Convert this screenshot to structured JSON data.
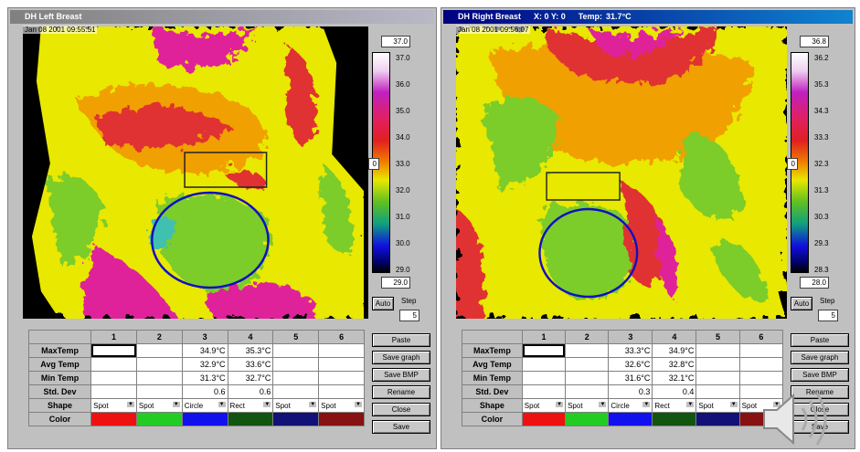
{
  "windows": [
    {
      "title": "DH Left Breast",
      "date": "Jan 08 2001 09:55:51",
      "scale": {
        "top": "37.0",
        "labels": [
          "37.0",
          "36.0",
          "35.0",
          "34.0",
          "33.0",
          "32.0",
          "31.0",
          "30.0",
          "29.0"
        ],
        "bottom": "29.0",
        "marker": "0"
      },
      "auto": "Auto",
      "step": "Step",
      "step_value": "5",
      "table": {
        "columns": [
          "1",
          "2",
          "3",
          "4",
          "5",
          "6"
        ],
        "rows": [
          {
            "label": "MaxTemp",
            "cells": [
              null,
              null,
              "34.9°C",
              "35.3°C",
              null,
              null
            ]
          },
          {
            "label": "Avg Temp",
            "cells": [
              null,
              null,
              "32.9°C",
              "33.6°C",
              null,
              null
            ]
          },
          {
            "label": "Min Temp",
            "cells": [
              null,
              null,
              "31.3°C",
              "32.7°C",
              null,
              null
            ]
          },
          {
            "label": "Std. Dev",
            "cells": [
              null,
              null,
              "0.6",
              "0.6",
              null,
              null
            ]
          },
          {
            "label": "Shape",
            "cells": [
              "Spot",
              "Spot",
              "Circle",
              "Rect",
              "Spot",
              "Spot"
            ]
          },
          {
            "label": "Color",
            "swatches": [
              "#ee1111",
              "#22cc22",
              "#1111ee",
              "#115511",
              "#111177",
              "#881111"
            ]
          }
        ]
      },
      "buttons": [
        "Paste",
        "Save graph",
        "Save BMP",
        "Rename",
        "Close",
        "Save"
      ]
    },
    {
      "title": "DH Right Breast",
      "cursor": "X: 0  Y: 0",
      "temp_label": "Temp:",
      "temp": "31.7°C",
      "date": "Jan 08 2001 09:56:07",
      "scale": {
        "top": "36.8",
        "labels": [
          "36.2",
          "35.3",
          "34.3",
          "33.3",
          "32.3",
          "31.3",
          "30.3",
          "29.3",
          "28.3"
        ],
        "bottom": "28.0",
        "marker": "0"
      },
      "auto": "Auto",
      "step": "Step",
      "step_value": "5",
      "table": {
        "columns": [
          "1",
          "2",
          "3",
          "4",
          "5",
          "6"
        ],
        "rows": [
          {
            "label": "MaxTemp",
            "cells": [
              null,
              null,
              "33.3°C",
              "34.9°C",
              null,
              null
            ]
          },
          {
            "label": "Avg Temp",
            "cells": [
              null,
              null,
              "32.6°C",
              "32.8°C",
              null,
              null
            ]
          },
          {
            "label": "Min Temp",
            "cells": [
              null,
              null,
              "31.6°C",
              "32.1°C",
              null,
              null
            ]
          },
          {
            "label": "Std. Dev",
            "cells": [
              null,
              null,
              "0.3",
              "0.4",
              null,
              null
            ]
          },
          {
            "label": "Shape",
            "cells": [
              "Spot",
              "Spot",
              "Circle",
              "Rect",
              "Spot",
              "Spot"
            ]
          },
          {
            "label": "Color",
            "swatches": [
              "#ee1111",
              "#22cc22",
              "#1111ee",
              "#115511",
              "#111177",
              "#881111"
            ]
          }
        ]
      },
      "buttons": [
        "Paste",
        "Save graph",
        "Save BMP",
        "Rename",
        "Close",
        "Save"
      ]
    }
  ]
}
